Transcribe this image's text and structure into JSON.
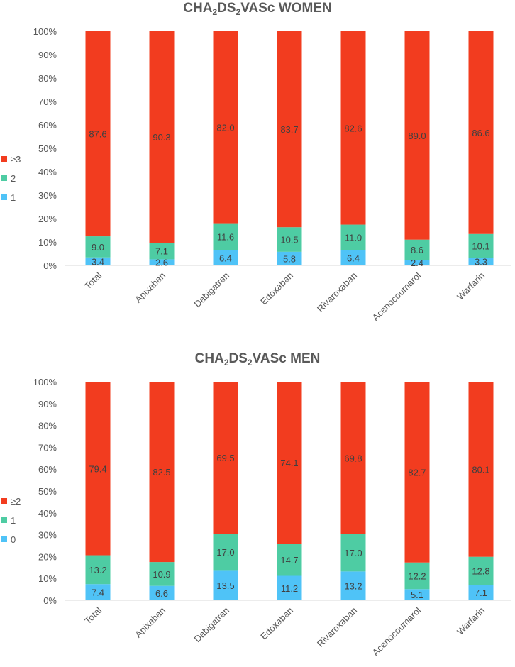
{
  "chart_data": [
    {
      "type": "bar",
      "stacked": true,
      "title_parts": {
        "a": "CHA",
        "sub1": "2",
        "b": "DS",
        "sub2": "2",
        "c": "VASc WOMEN"
      },
      "categories": [
        "Total",
        "Apixaban",
        "Dabigatran",
        "Edoxaban",
        "Rivaroxaban",
        "Acenocoumarol",
        "Warfarin"
      ],
      "series": [
        {
          "name": "1",
          "color": "#4FC3F7",
          "values": [
            3.4,
            2.6,
            6.4,
            5.8,
            6.4,
            2.4,
            3.3
          ]
        },
        {
          "name": "2",
          "color": "#4ECCA3",
          "values": [
            9.0,
            7.1,
            11.6,
            10.5,
            11.0,
            8.6,
            10.1
          ]
        },
        {
          "name": "≥3",
          "color": "#F23C1F",
          "values": [
            87.6,
            90.3,
            82.0,
            83.7,
            82.6,
            89.0,
            86.6
          ]
        }
      ],
      "ylim": [
        0,
        100
      ],
      "yticks": [
        "0%",
        "10%",
        "20%",
        "30%",
        "40%",
        "50%",
        "60%",
        "70%",
        "80%",
        "90%",
        "100%"
      ],
      "data_labels": [
        [
          "3.4",
          "2.6",
          "6.4",
          "5.8",
          "6.4",
          "2.4",
          "3.3"
        ],
        [
          "9.0",
          "7.1",
          "11.6",
          "10.5",
          "11.0",
          "8.6",
          "10.1"
        ],
        [
          "87.6",
          "90.3",
          "82.0",
          "83.7",
          "82.6",
          "89.0",
          "86.6"
        ]
      ],
      "legend_position": "left"
    },
    {
      "type": "bar",
      "stacked": true,
      "title_parts": {
        "a": "CHA",
        "sub1": "2",
        "b": "DS",
        "sub2": "2",
        "c": "VASc MEN"
      },
      "categories": [
        "Total",
        "Apixaban",
        "Dabigatran",
        "Edoxaban",
        "Rivaroxaban",
        "Acenocoumarol",
        "Warfarin"
      ],
      "series": [
        {
          "name": "0",
          "color": "#4FC3F7",
          "values": [
            7.4,
            6.6,
            13.5,
            11.2,
            13.2,
            5.1,
            7.1
          ]
        },
        {
          "name": "1",
          "color": "#4ECCA3",
          "values": [
            13.2,
            10.9,
            17.0,
            14.7,
            17.0,
            12.2,
            12.8
          ]
        },
        {
          "name": "≥2",
          "color": "#F23C1F",
          "values": [
            79.4,
            82.5,
            69.5,
            74.1,
            69.8,
            82.7,
            80.1
          ]
        }
      ],
      "ylim": [
        0,
        100
      ],
      "yticks": [
        "0%",
        "10%",
        "20%",
        "30%",
        "40%",
        "50%",
        "60%",
        "70%",
        "80%",
        "90%",
        "100%"
      ],
      "data_labels": [
        [
          "7.4",
          "6.6",
          "13.5",
          "11.2",
          "13.2",
          "5.1",
          "7.1"
        ],
        [
          "13.2",
          "10.9",
          "17.0",
          "14.7",
          "17.0",
          "12.2",
          "12.8"
        ],
        [
          "79.4",
          "82.5",
          "69.5",
          "74.1",
          "69.8",
          "82.7",
          "80.1"
        ]
      ],
      "legend_position": "left"
    }
  ]
}
